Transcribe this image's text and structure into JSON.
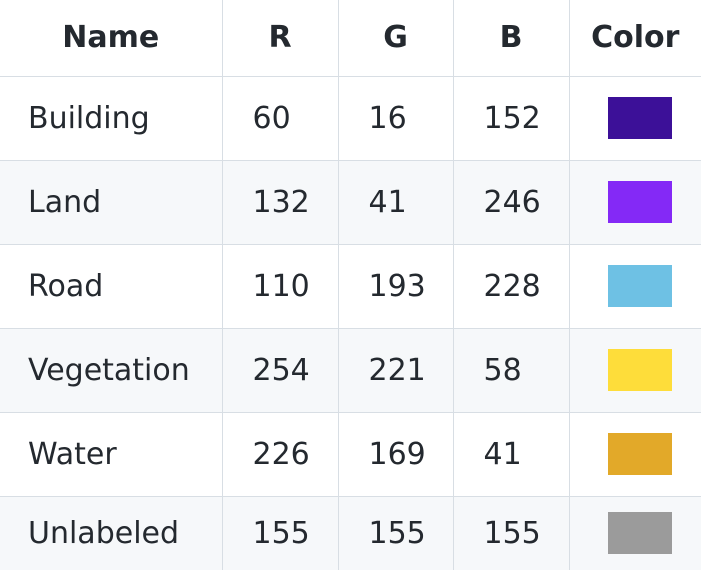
{
  "table": {
    "headers": [
      "Name",
      "R",
      "G",
      "B",
      "Color"
    ],
    "rows": [
      {
        "name": "Building",
        "r": "60",
        "g": "16",
        "b": "152",
        "color": "#3c1098"
      },
      {
        "name": "Land",
        "r": "132",
        "g": "41",
        "b": "246",
        "color": "#8429f6"
      },
      {
        "name": "Road",
        "r": "110",
        "g": "193",
        "b": "228",
        "color": "#6ec1e4"
      },
      {
        "name": "Vegetation",
        "r": "254",
        "g": "221",
        "b": "58",
        "color": "#fedd3a"
      },
      {
        "name": "Water",
        "r": "226",
        "g": "169",
        "b": "41",
        "color": "#e2a929"
      },
      {
        "name": "Unlabeled",
        "r": "155",
        "g": "155",
        "b": "155",
        "color": "#9b9b9b"
      }
    ]
  }
}
